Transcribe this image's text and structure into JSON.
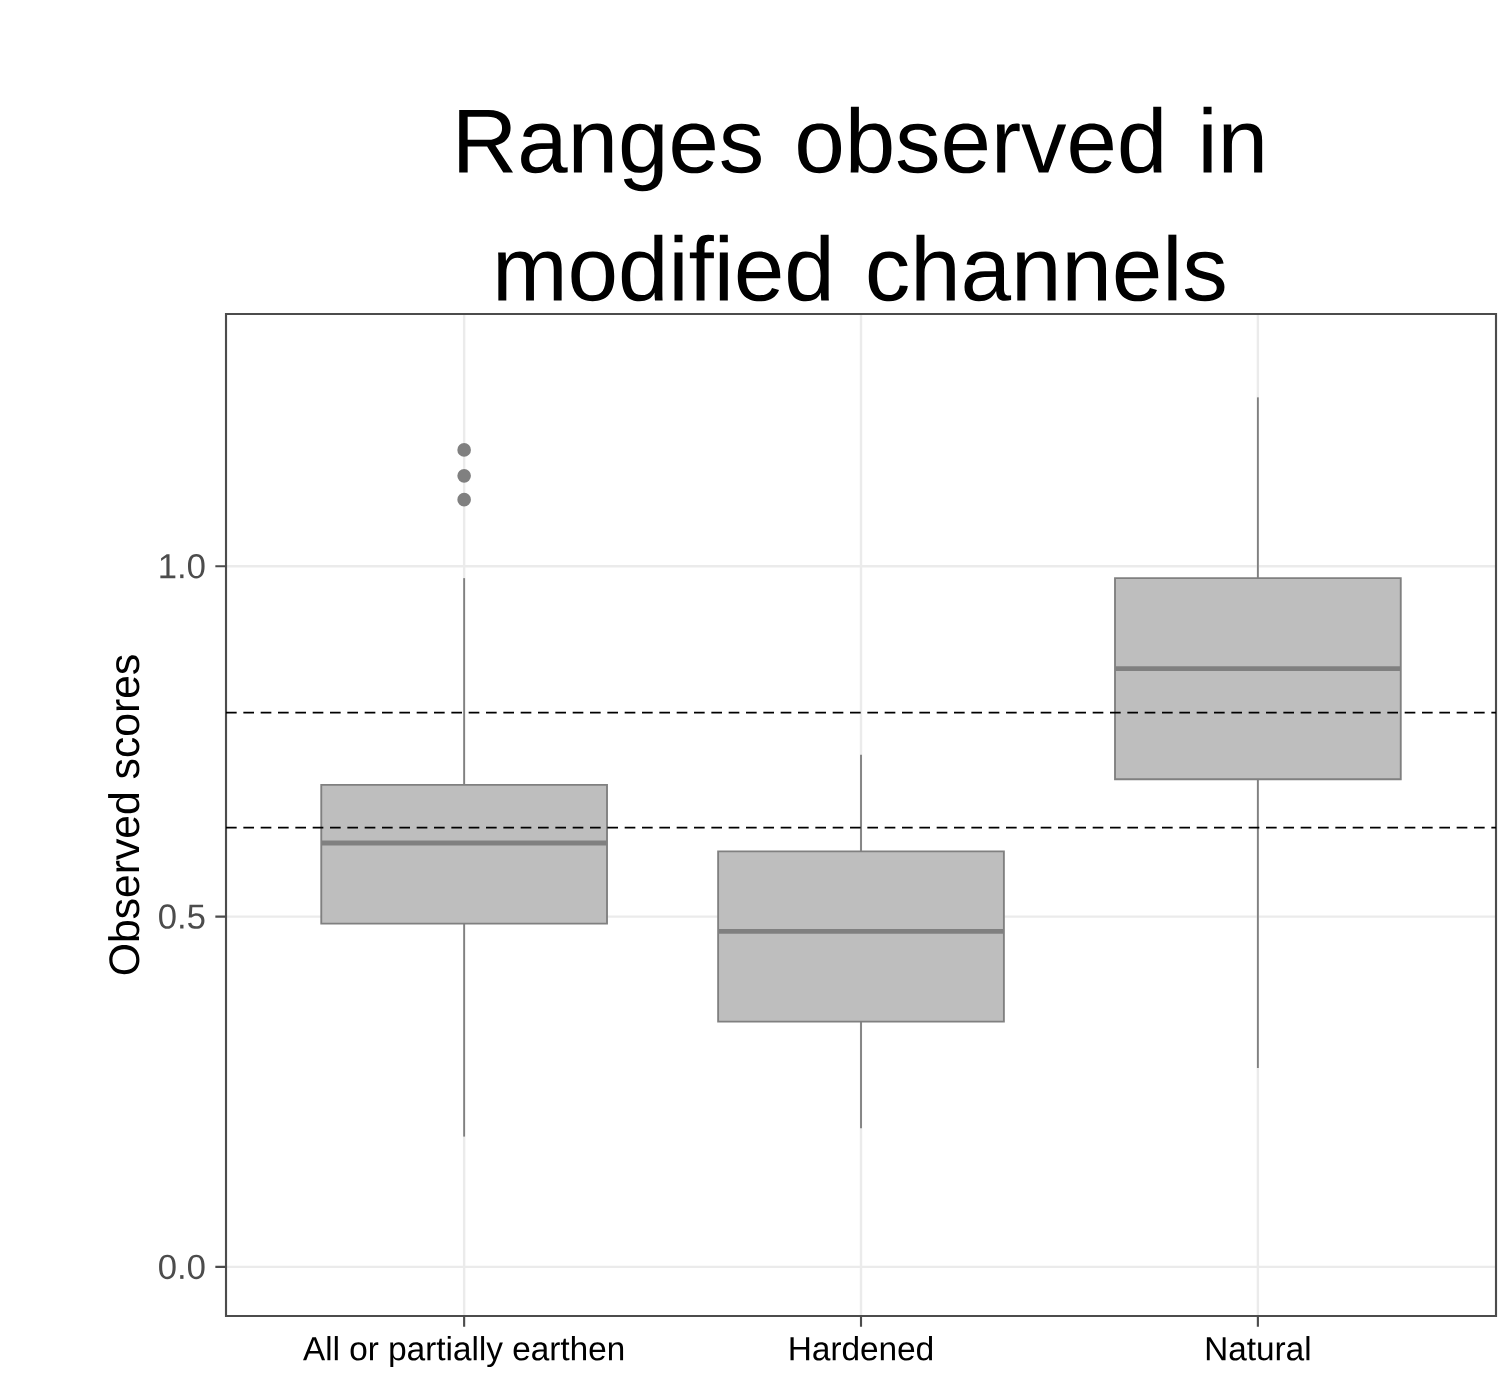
{
  "chart_data": {
    "type": "box",
    "title": "Ranges observed in modified channels",
    "ylabel": "Observed scores",
    "categories": [
      "All or partially earthen",
      "Hardened",
      "Natural"
    ],
    "colors": [
      "#bebebe",
      "#bebebe",
      "#bebebe"
    ],
    "boxes": [
      {
        "low": 0.186,
        "q1": 0.49,
        "median": 0.605,
        "q3": 0.688,
        "high": 0.983,
        "outliers": [
          1.095,
          1.129,
          1.166
        ]
      },
      {
        "low": 0.198,
        "q1": 0.35,
        "median": 0.479,
        "q3": 0.593,
        "high": 0.731
      },
      {
        "low": 0.284,
        "q1": 0.696,
        "median": 0.854,
        "q3": 0.983,
        "high": 1.241
      }
    ],
    "ref_lines": [
      {
        "axis": "y",
        "value": 0.791,
        "color": "#000000",
        "line_style": "dashed"
      },
      {
        "axis": "y",
        "value": 0.627,
        "color": "#000000",
        "line_style": "dashed"
      }
    ],
    "ylim": [
      -0.07,
      1.36
    ],
    "yticks": [
      {
        "value": 0,
        "label": "0.0"
      },
      {
        "value": 0.5,
        "label": "0.5"
      },
      {
        "value": 1,
        "label": "1.0"
      }
    ],
    "grid": true
  }
}
